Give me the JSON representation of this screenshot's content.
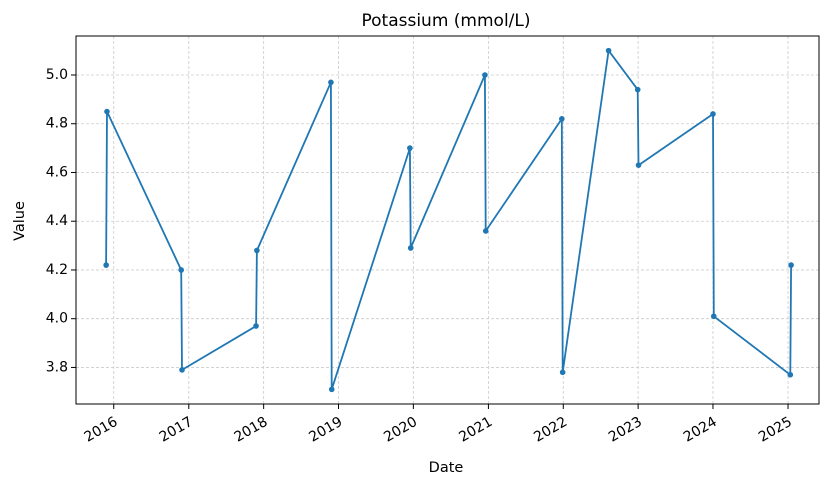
{
  "chart_data": {
    "type": "line",
    "title": "Potassium (mmol/L)",
    "xlabel": "Date",
    "ylabel": "Value",
    "xlim": [
      "2015-07-01",
      "2025-06-01"
    ],
    "ylim": [
      3.65,
      5.16
    ],
    "grid": true,
    "x_ticks": [
      "2016",
      "2017",
      "2018",
      "2019",
      "2020",
      "2021",
      "2022",
      "2023",
      "2024",
      "2025"
    ],
    "y_ticks": [
      "3.8",
      "4.0",
      "4.2",
      "4.4",
      "4.6",
      "4.8",
      "5.0"
    ],
    "series": [
      {
        "color": "#1f77b4",
        "points": [
          {
            "x": "2015-11-25",
            "y": 4.22
          },
          {
            "x": "2015-11-29",
            "y": 4.85
          },
          {
            "x": "2016-11-25",
            "y": 4.2
          },
          {
            "x": "2016-11-29",
            "y": 3.79
          },
          {
            "x": "2017-11-25",
            "y": 3.97
          },
          {
            "x": "2017-11-29",
            "y": 4.28
          },
          {
            "x": "2018-11-25",
            "y": 4.97
          },
          {
            "x": "2018-11-29",
            "y": 3.71
          },
          {
            "x": "2019-12-15",
            "y": 4.7
          },
          {
            "x": "2019-12-19",
            "y": 4.29
          },
          {
            "x": "2020-12-15",
            "y": 5.0
          },
          {
            "x": "2020-12-19",
            "y": 4.36
          },
          {
            "x": "2021-12-25",
            "y": 4.82
          },
          {
            "x": "2021-12-29",
            "y": 3.78
          },
          {
            "x": "2022-08-10",
            "y": 5.1
          },
          {
            "x": "2022-12-30",
            "y": 4.94
          },
          {
            "x": "2023-01-03",
            "y": 4.63
          },
          {
            "x": "2024-01-01",
            "y": 4.84
          },
          {
            "x": "2024-01-05",
            "y": 4.01
          },
          {
            "x": "2025-01-12",
            "y": 3.77
          },
          {
            "x": "2025-01-16",
            "y": 4.22
          }
        ]
      }
    ]
  }
}
